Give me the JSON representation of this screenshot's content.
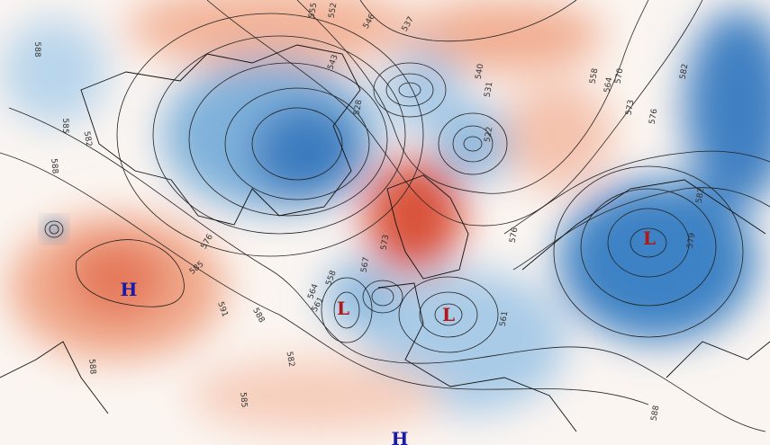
{
  "centers": [
    {
      "label": "H"
    },
    {
      "label": "L"
    },
    {
      "label": "L"
    },
    {
      "label": "L"
    },
    {
      "label": "H"
    }
  ],
  "contour_labels": [
    "588",
    "585",
    "582",
    "588",
    "576",
    "585",
    "591",
    "588",
    "582",
    "585",
    "588",
    "564",
    "558",
    "561",
    "573",
    "567",
    "528",
    "537",
    "540",
    "546",
    "552",
    "555",
    "543",
    "531",
    "522",
    "576",
    "570",
    "573",
    "576",
    "582",
    "579",
    "582",
    "564",
    "558",
    "588",
    "561"
  ]
}
